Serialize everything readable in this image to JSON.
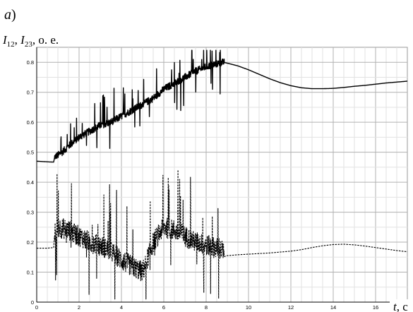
{
  "chart_data": {
    "type": "line",
    "panel_label": "a",
    "panel_label_suffix": ")",
    "ylabel": {
      "sym1": "I",
      "sub1": "12",
      "sep": ", ",
      "sym2": "I",
      "sub2": "23",
      "unit": ", о. е."
    },
    "xlabel": {
      "sym": "t",
      "unit": ", с"
    },
    "xlim": [
      0,
      17.5
    ],
    "ylim": [
      0,
      0.85
    ],
    "xticks": [
      0,
      2,
      4,
      6,
      8,
      10,
      12,
      14,
      16
    ],
    "xtick_labels": [
      "0",
      "2",
      "4",
      "6",
      "8",
      "10",
      "12",
      "14",
      "16"
    ],
    "yticks": [
      0,
      0.1,
      0.2,
      0.3,
      0.4,
      0.5,
      0.6,
      0.7,
      0.8
    ],
    "ytick_labels": [
      "0",
      "0.1",
      "0.2",
      "0.3",
      "0.4",
      "0.5",
      "0.6",
      "0.7",
      "0.8"
    ],
    "grid": true,
    "series": [
      {
        "style": "solid",
        "color": "#000000",
        "x": [
          0,
          0.5,
          0.8,
          0.85,
          1.0,
          1.2,
          1.5,
          2.0,
          2.5,
          3.0,
          3.5,
          4.0,
          4.5,
          5.0,
          5.5,
          6.0,
          6.5,
          7.0,
          7.5,
          8.0,
          8.5,
          8.8,
          9.0,
          9.5,
          10.0,
          10.5,
          11.0,
          11.5,
          12.0,
          12.5,
          13.0,
          13.5,
          14.0,
          14.5,
          15.0,
          15.5,
          16.0,
          16.5,
          17.0,
          17.5
        ],
        "y": [
          0.47,
          0.468,
          0.467,
          0.485,
          0.49,
          0.5,
          0.52,
          0.55,
          0.57,
          0.59,
          0.6,
          0.62,
          0.64,
          0.66,
          0.68,
          0.71,
          0.73,
          0.75,
          0.77,
          0.785,
          0.795,
          0.8,
          0.797,
          0.788,
          0.775,
          0.76,
          0.745,
          0.732,
          0.722,
          0.715,
          0.712,
          0.712,
          0.713,
          0.716,
          0.72,
          0.723,
          0.727,
          0.731,
          0.734,
          0.737
        ]
      },
      {
        "style": "dashed",
        "color": "#000000",
        "x": [
          0,
          0.5,
          0.8,
          0.85,
          1.0,
          1.5,
          2.0,
          2.5,
          3.0,
          3.5,
          4.0,
          4.5,
          5.0,
          5.5,
          6.0,
          6.5,
          7.0,
          7.5,
          8.0,
          8.5,
          8.8,
          8.85,
          9.0,
          9.5,
          10.0,
          10.5,
          11.0,
          11.5,
          12.0,
          12.5,
          13.0,
          13.5,
          14.0,
          14.5,
          15.0,
          15.5,
          16.0,
          16.5,
          17.0,
          17.5
        ],
        "y": [
          0.18,
          0.18,
          0.182,
          0.23,
          0.25,
          0.24,
          0.22,
          0.2,
          0.19,
          0.17,
          0.14,
          0.12,
          0.1,
          0.2,
          0.25,
          0.24,
          0.22,
          0.2,
          0.19,
          0.18,
          0.17,
          0.152,
          0.155,
          0.158,
          0.16,
          0.162,
          0.164,
          0.167,
          0.17,
          0.175,
          0.182,
          0.188,
          0.192,
          0.193,
          0.191,
          0.187,
          0.182,
          0.177,
          0.172,
          0.168
        ]
      }
    ]
  }
}
